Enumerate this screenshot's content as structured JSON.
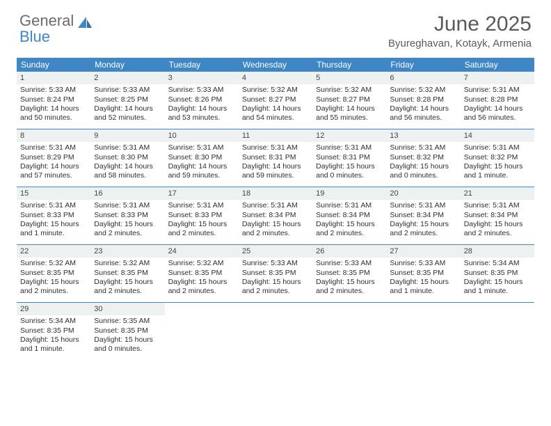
{
  "brand": {
    "word1": "General",
    "word2": "Blue"
  },
  "title": "June 2025",
  "location": "Byureghavan, Kotayk, Armenia",
  "colors": {
    "header_bg": "#3f86c7",
    "header_text": "#ffffff",
    "daynum_bg": "#eef1f2",
    "border": "#3f86c7",
    "title_color": "#5a5a5a",
    "logo_gray": "#6b6b6b",
    "logo_blue": "#3f86c7",
    "body_text": "#2e2e2e"
  },
  "weekdays": [
    "Sunday",
    "Monday",
    "Tuesday",
    "Wednesday",
    "Thursday",
    "Friday",
    "Saturday"
  ],
  "days": [
    {
      "n": "1",
      "sunrise": "5:33 AM",
      "sunset": "8:24 PM",
      "daylight": "14 hours and 50 minutes."
    },
    {
      "n": "2",
      "sunrise": "5:33 AM",
      "sunset": "8:25 PM",
      "daylight": "14 hours and 52 minutes."
    },
    {
      "n": "3",
      "sunrise": "5:33 AM",
      "sunset": "8:26 PM",
      "daylight": "14 hours and 53 minutes."
    },
    {
      "n": "4",
      "sunrise": "5:32 AM",
      "sunset": "8:27 PM",
      "daylight": "14 hours and 54 minutes."
    },
    {
      "n": "5",
      "sunrise": "5:32 AM",
      "sunset": "8:27 PM",
      "daylight": "14 hours and 55 minutes."
    },
    {
      "n": "6",
      "sunrise": "5:32 AM",
      "sunset": "8:28 PM",
      "daylight": "14 hours and 56 minutes."
    },
    {
      "n": "7",
      "sunrise": "5:31 AM",
      "sunset": "8:28 PM",
      "daylight": "14 hours and 56 minutes."
    },
    {
      "n": "8",
      "sunrise": "5:31 AM",
      "sunset": "8:29 PM",
      "daylight": "14 hours and 57 minutes."
    },
    {
      "n": "9",
      "sunrise": "5:31 AM",
      "sunset": "8:30 PM",
      "daylight": "14 hours and 58 minutes."
    },
    {
      "n": "10",
      "sunrise": "5:31 AM",
      "sunset": "8:30 PM",
      "daylight": "14 hours and 59 minutes."
    },
    {
      "n": "11",
      "sunrise": "5:31 AM",
      "sunset": "8:31 PM",
      "daylight": "14 hours and 59 minutes."
    },
    {
      "n": "12",
      "sunrise": "5:31 AM",
      "sunset": "8:31 PM",
      "daylight": "15 hours and 0 minutes."
    },
    {
      "n": "13",
      "sunrise": "5:31 AM",
      "sunset": "8:32 PM",
      "daylight": "15 hours and 0 minutes."
    },
    {
      "n": "14",
      "sunrise": "5:31 AM",
      "sunset": "8:32 PM",
      "daylight": "15 hours and 1 minute."
    },
    {
      "n": "15",
      "sunrise": "5:31 AM",
      "sunset": "8:33 PM",
      "daylight": "15 hours and 1 minute."
    },
    {
      "n": "16",
      "sunrise": "5:31 AM",
      "sunset": "8:33 PM",
      "daylight": "15 hours and 2 minutes."
    },
    {
      "n": "17",
      "sunrise": "5:31 AM",
      "sunset": "8:33 PM",
      "daylight": "15 hours and 2 minutes."
    },
    {
      "n": "18",
      "sunrise": "5:31 AM",
      "sunset": "8:34 PM",
      "daylight": "15 hours and 2 minutes."
    },
    {
      "n": "19",
      "sunrise": "5:31 AM",
      "sunset": "8:34 PM",
      "daylight": "15 hours and 2 minutes."
    },
    {
      "n": "20",
      "sunrise": "5:31 AM",
      "sunset": "8:34 PM",
      "daylight": "15 hours and 2 minutes."
    },
    {
      "n": "21",
      "sunrise": "5:31 AM",
      "sunset": "8:34 PM",
      "daylight": "15 hours and 2 minutes."
    },
    {
      "n": "22",
      "sunrise": "5:32 AM",
      "sunset": "8:35 PM",
      "daylight": "15 hours and 2 minutes."
    },
    {
      "n": "23",
      "sunrise": "5:32 AM",
      "sunset": "8:35 PM",
      "daylight": "15 hours and 2 minutes."
    },
    {
      "n": "24",
      "sunrise": "5:32 AM",
      "sunset": "8:35 PM",
      "daylight": "15 hours and 2 minutes."
    },
    {
      "n": "25",
      "sunrise": "5:33 AM",
      "sunset": "8:35 PM",
      "daylight": "15 hours and 2 minutes."
    },
    {
      "n": "26",
      "sunrise": "5:33 AM",
      "sunset": "8:35 PM",
      "daylight": "15 hours and 2 minutes."
    },
    {
      "n": "27",
      "sunrise": "5:33 AM",
      "sunset": "8:35 PM",
      "daylight": "15 hours and 1 minute."
    },
    {
      "n": "28",
      "sunrise": "5:34 AM",
      "sunset": "8:35 PM",
      "daylight": "15 hours and 1 minute."
    },
    {
      "n": "29",
      "sunrise": "5:34 AM",
      "sunset": "8:35 PM",
      "daylight": "15 hours and 1 minute."
    },
    {
      "n": "30",
      "sunrise": "5:35 AM",
      "sunset": "8:35 PM",
      "daylight": "15 hours and 0 minutes."
    }
  ],
  "labels": {
    "sunrise": "Sunrise:",
    "sunset": "Sunset:",
    "daylight": "Daylight:"
  },
  "layout": {
    "cols": 7,
    "rows": 5,
    "trailing_empty": 5
  }
}
